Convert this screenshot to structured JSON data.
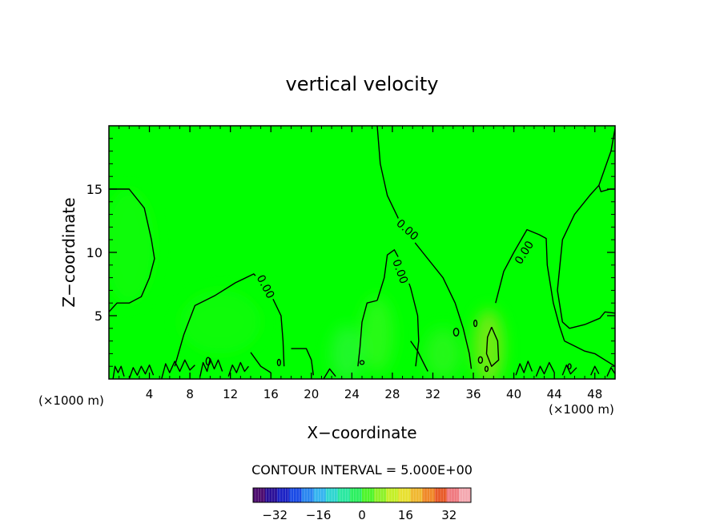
{
  "chart_data": {
    "type": "heatmap",
    "title": "vertical velocity",
    "xlabel": "X−coordinate",
    "ylabel": "Z−coordinate",
    "x_unit": "(×1000 m)",
    "x_unit_right": "(×1000 m)",
    "xlim": [
      0,
      50
    ],
    "ylim": [
      0,
      20
    ],
    "x_ticks": [
      4,
      8,
      12,
      16,
      20,
      24,
      28,
      32,
      36,
      40,
      44,
      48
    ],
    "y_ticks": [
      5,
      10,
      15
    ],
    "contour_interval_text": "CONTOUR INTERVAL = 5.000E+00",
    "contour_labels": [
      {
        "text": "0.00",
        "x": 15.5,
        "z": 7.3,
        "angle": 62
      },
      {
        "text": "0.00",
        "x": 28.8,
        "z": 8.5,
        "angle": 70
      },
      {
        "text": "0.00",
        "x": 29.5,
        "z": 11.8,
        "angle": 42
      },
      {
        "text": "0.00",
        "x": 41.0,
        "z": 10.0,
        "angle": -58
      }
    ],
    "contour_lines": [
      [
        [
          0,
          15.0
        ],
        [
          2,
          15.0
        ],
        [
          3.5,
          13.5
        ],
        [
          4.2,
          11.0
        ],
        [
          4.5,
          9.5
        ],
        [
          4.0,
          8.0
        ],
        [
          3.2,
          6.5
        ],
        [
          2.0,
          6.0
        ],
        [
          0.8,
          6.0
        ],
        [
          0,
          5.3
        ]
      ],
      [
        [
          6.5,
          1.0
        ],
        [
          7.4,
          3.5
        ],
        [
          8.5,
          5.8
        ],
        [
          10.5,
          6.6
        ],
        [
          12.5,
          7.6
        ],
        [
          14.3,
          8.3
        ],
        [
          15.8,
          7.0
        ],
        [
          17.0,
          5.0
        ],
        [
          17.2,
          3.0
        ],
        [
          17.3,
          1.0
        ]
      ],
      [
        [
          26.5,
          6.2
        ],
        [
          25.5,
          6.0
        ],
        [
          25.0,
          4.5
        ],
        [
          24.8,
          2.5
        ],
        [
          24.6,
          1.0
        ]
      ],
      [
        [
          26.5,
          6.2
        ],
        [
          27.2,
          8.0
        ],
        [
          27.5,
          9.8
        ],
        [
          28.2,
          10.2
        ],
        [
          29.0,
          9.0
        ],
        [
          29.8,
          7.2
        ],
        [
          30.5,
          5.0
        ],
        [
          30.6,
          3.0
        ],
        [
          30.3,
          1.0
        ]
      ],
      [
        [
          26.5,
          20
        ],
        [
          26.8,
          17.0
        ],
        [
          27.5,
          14.5
        ],
        [
          29.0,
          12.0
        ],
        [
          31.0,
          10.0
        ],
        [
          33.0,
          8.0
        ],
        [
          34.2,
          6.0
        ],
        [
          35.0,
          4.0
        ],
        [
          35.6,
          2.0
        ],
        [
          35.8,
          0.8
        ]
      ],
      [
        [
          38.2,
          6.0
        ],
        [
          39.0,
          8.5
        ],
        [
          40.0,
          10.0
        ],
        [
          41.3,
          11.8
        ],
        [
          42.5,
          11.4
        ],
        [
          43.2,
          11.1
        ],
        [
          43.3,
          9.0
        ],
        [
          43.9,
          6.0
        ],
        [
          44.5,
          4.2
        ],
        [
          45.0,
          3.0
        ]
      ],
      [
        [
          45.0,
          3.0
        ],
        [
          46.0,
          2.6
        ],
        [
          47.0,
          2.2
        ],
        [
          48.0,
          2.0
        ],
        [
          49.0,
          1.5
        ],
        [
          50.0,
          1.0
        ]
      ],
      [
        [
          50.0,
          19.8
        ],
        [
          49.6,
          18.0
        ],
        [
          48.4,
          15.3
        ],
        [
          48.6,
          14.8
        ],
        [
          49.5,
          15.0
        ],
        [
          50.0,
          15.0
        ]
      ],
      [
        [
          50.0,
          5.2
        ],
        [
          49.0,
          5.3
        ],
        [
          48.5,
          4.8
        ],
        [
          47.0,
          4.3
        ],
        [
          45.5,
          4.0
        ],
        [
          44.8,
          4.5
        ],
        [
          44.3,
          7.0
        ],
        [
          44.8,
          11.0
        ],
        [
          46.0,
          13.0
        ],
        [
          47.5,
          14.5
        ],
        [
          48.4,
          15.3
        ]
      ],
      [
        [
          37.8,
          4.1
        ],
        [
          38.4,
          3.0
        ],
        [
          38.5,
          1.5
        ],
        [
          37.8,
          1.0
        ],
        [
          37.3,
          2.0
        ],
        [
          37.4,
          3.3
        ],
        [
          37.8,
          4.1
        ]
      ],
      [
        [
          29.8,
          3.0
        ],
        [
          30.5,
          2.2
        ],
        [
          31.0,
          1.4
        ],
        [
          31.5,
          0.6
        ]
      ],
      [
        [
          14.0,
          2.1
        ],
        [
          15.0,
          1.0
        ],
        [
          16.0,
          0.5
        ]
      ],
      [
        [
          18.0,
          2.4
        ],
        [
          19.5,
          2.4
        ],
        [
          20.0,
          1.5
        ],
        [
          20.2,
          0.3
        ]
      ],
      [
        [
          0.4,
          0.0
        ],
        [
          0.6,
          1.0
        ],
        [
          0.9,
          0.5
        ],
        [
          1.2,
          1.0
        ],
        [
          1.5,
          0.2
        ]
      ],
      [
        [
          2.0,
          0.0
        ],
        [
          2.4,
          0.9
        ],
        [
          2.8,
          0.3
        ],
        [
          3.2,
          1.0
        ],
        [
          3.6,
          0.4
        ],
        [
          4.0,
          1.1
        ],
        [
          4.4,
          0.3
        ]
      ],
      [
        [
          5.2,
          0.0
        ],
        [
          5.6,
          1.2
        ],
        [
          6.0,
          0.5
        ],
        [
          6.5,
          1.4
        ],
        [
          7.0,
          0.6
        ],
        [
          7.5,
          1.5
        ],
        [
          8.0,
          0.7
        ],
        [
          8.5,
          1.1
        ]
      ],
      [
        [
          9.0,
          0.2
        ],
        [
          9.3,
          1.3
        ],
        [
          9.7,
          0.6
        ],
        [
          10.0,
          1.6
        ],
        [
          10.4,
          0.8
        ],
        [
          10.8,
          1.5
        ],
        [
          11.2,
          0.6
        ]
      ],
      [
        [
          11.8,
          0.2
        ],
        [
          12.2,
          1.1
        ],
        [
          12.6,
          0.5
        ],
        [
          13.0,
          1.3
        ],
        [
          13.4,
          0.6
        ],
        [
          13.8,
          1.0
        ]
      ],
      [
        [
          21.2,
          0.0
        ],
        [
          21.8,
          0.8
        ],
        [
          22.4,
          0.2
        ]
      ],
      [
        [
          40.2,
          0.3
        ],
        [
          40.6,
          1.2
        ],
        [
          41.0,
          0.5
        ],
        [
          41.4,
          1.4
        ],
        [
          41.8,
          0.6
        ]
      ],
      [
        [
          42.2,
          0.2
        ],
        [
          42.6,
          1.0
        ],
        [
          43.0,
          0.4
        ],
        [
          43.5,
          1.3
        ],
        [
          44.0,
          0.5
        ]
      ],
      [
        [
          44.8,
          0.3
        ],
        [
          45.2,
          1.1
        ],
        [
          45.6,
          0.4
        ],
        [
          46.2,
          0.9
        ]
      ],
      [
        [
          47.6,
          0.3
        ],
        [
          48.0,
          1.0
        ],
        [
          48.4,
          0.4
        ]
      ],
      [
        [
          49.2,
          0.2
        ],
        [
          49.6,
          0.9
        ],
        [
          50.0,
          0.4
        ]
      ]
    ],
    "small_contours": [
      {
        "x": 34.3,
        "z": 3.7,
        "rx": 0.25,
        "rz": 0.3
      },
      {
        "x": 36.7,
        "z": 1.5,
        "rx": 0.2,
        "rz": 0.25
      },
      {
        "x": 36.2,
        "z": 4.4,
        "rx": 0.15,
        "rz": 0.25
      },
      {
        "x": 25.0,
        "z": 1.3,
        "rx": 0.2,
        "rz": 0.15
      },
      {
        "x": 16.8,
        "z": 1.3,
        "rx": 0.15,
        "rz": 0.25
      },
      {
        "x": 9.8,
        "z": 1.4,
        "rx": 0.2,
        "rz": 0.3
      },
      {
        "x": 37.3,
        "z": 0.8,
        "rx": 0.15,
        "rz": 0.2
      },
      {
        "x": 45.5,
        "z": 1.0,
        "rx": 0.15,
        "rz": 0.2
      }
    ],
    "field_base_color": "#00ff00",
    "field_tints": [
      {
        "x": 37.5,
        "z": 2.5,
        "rx": 1.5,
        "rz": 3.0,
        "color": "#9ee21a",
        "opacity": 0.7
      },
      {
        "x": 26.5,
        "z": 3.5,
        "rx": 1.6,
        "rz": 3.0,
        "color": "#48f52a",
        "opacity": 0.55
      },
      {
        "x": 23.5,
        "z": 2.0,
        "rx": 1.6,
        "rz": 2.2,
        "color": "#46f05a",
        "opacity": 0.45
      },
      {
        "x": 33.0,
        "z": 2.0,
        "rx": 1.8,
        "rz": 2.0,
        "color": "#4ff030",
        "opacity": 0.45
      },
      {
        "x": 2.0,
        "z": 10.5,
        "rx": 2.5,
        "rz": 4.5,
        "color": "#2cf51a",
        "opacity": 0.35
      },
      {
        "x": 11.0,
        "z": 4.5,
        "rx": 4.0,
        "rz": 2.5,
        "color": "#2cf51a",
        "opacity": 0.3
      }
    ],
    "colorbar": {
      "vmin": -40,
      "vmax": 40,
      "ticks": [
        -32,
        -16,
        0,
        16,
        32
      ],
      "colors": [
        "#4b0a6e",
        "#2a0f98",
        "#1c22c4",
        "#1a4be6",
        "#2a86f0",
        "#35b4f0",
        "#2fd6d0",
        "#2ae8a0",
        "#2cf060",
        "#4ef52a",
        "#8cf228",
        "#c4ef28",
        "#e8e030",
        "#f0b830",
        "#f08828",
        "#e85a28",
        "#f07a80",
        "#f4a8b0"
      ]
    }
  }
}
